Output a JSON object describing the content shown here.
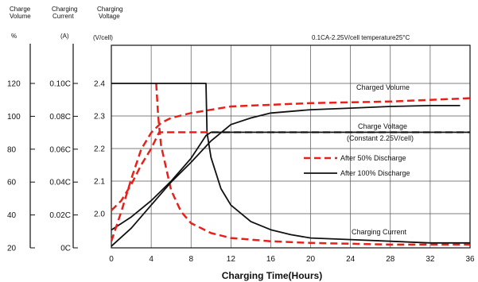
{
  "chart_data": {
    "type": "line",
    "title": "",
    "condition": "0.1CA-2.25V/cell   temperature25°C",
    "xlabel": "Charging Time(Hours)",
    "xlim": [
      0,
      36
    ],
    "x_ticks": [
      "0",
      "4",
      "8",
      "12",
      "16",
      "20",
      "24",
      "28",
      "32",
      "36"
    ],
    "axes": {
      "volume": {
        "header": [
          "Charge",
          "Volume"
        ],
        "unit": "%",
        "ylim": [
          20,
          120
        ],
        "ticks": [
          "120",
          "100",
          "80",
          "60",
          "40",
          "20"
        ]
      },
      "current": {
        "header": [
          "Charging",
          "Current"
        ],
        "unit": "(A)",
        "ylim": [
          0,
          0.1
        ],
        "ticks": [
          "0.10C",
          "0.08C",
          "0.06C",
          "0.04C",
          "0.02C",
          "0C"
        ]
      },
      "voltage": {
        "header": [
          "Charging",
          "Voltage"
        ],
        "unit": "(V/cell)",
        "ylim": [
          1.9,
          2.4
        ],
        "ticks": [
          "2.4",
          "2.3",
          "2.2",
          "2.1",
          "2.0"
        ]
      }
    },
    "legend": {
      "position": "center-right",
      "items": [
        {
          "label": "After 50% Discharge",
          "style": "dashed",
          "color": "#e8201a"
        },
        {
          "label": "After 100% Discharge",
          "style": "solid",
          "color": "#111111"
        }
      ]
    },
    "annotations": {
      "volume": "Charged Volume",
      "voltage": [
        "Charge Voltage",
        "(Constant 2.25V/cell)"
      ],
      "current": "Charging Current"
    },
    "colors": {
      "after_50": "#e8201a",
      "after_100": "#111111"
    },
    "series": [
      {
        "group": "current",
        "axis": "current",
        "discharge": "50%",
        "points": [
          [
            4.5,
            0.1
          ],
          [
            4.7,
            0.08
          ],
          [
            5,
            0.062
          ],
          [
            6,
            0.035
          ],
          [
            7,
            0.022
          ],
          [
            8,
            0.015
          ],
          [
            10,
            0.009
          ],
          [
            12,
            0.006
          ],
          [
            16,
            0.004
          ],
          [
            20,
            0.003
          ],
          [
            28,
            0.002
          ],
          [
            36,
            0.002
          ]
        ]
      },
      {
        "group": "current",
        "axis": "current",
        "discharge": "100%",
        "points": [
          [
            0,
            0.1
          ],
          [
            9.5,
            0.1
          ],
          [
            9.6,
            0.07
          ],
          [
            10,
            0.055
          ],
          [
            11,
            0.036
          ],
          [
            12,
            0.026
          ],
          [
            14,
            0.016
          ],
          [
            16,
            0.011
          ],
          [
            18,
            0.008
          ],
          [
            20,
            0.006
          ],
          [
            24,
            0.005
          ],
          [
            28,
            0.004
          ],
          [
            32,
            0.003
          ],
          [
            36,
            0.003
          ]
        ]
      },
      {
        "group": "voltage",
        "axis": "voltage",
        "discharge": "50%",
        "points": [
          [
            0,
            2.01
          ],
          [
            1,
            2.04
          ],
          [
            2,
            2.09
          ],
          [
            3,
            2.15
          ],
          [
            4,
            2.2
          ],
          [
            4.8,
            2.25
          ],
          [
            6,
            2.25
          ],
          [
            36,
            2.25
          ]
        ]
      },
      {
        "group": "voltage",
        "axis": "voltage",
        "discharge": "100%",
        "points": [
          [
            0,
            1.95
          ],
          [
            2,
            1.99
          ],
          [
            4,
            2.04
          ],
          [
            6,
            2.1
          ],
          [
            8,
            2.17
          ],
          [
            9.5,
            2.24
          ],
          [
            10,
            2.25
          ],
          [
            36,
            2.25
          ]
        ]
      },
      {
        "group": "volume",
        "axis": "volume",
        "discharge": "50%",
        "points": [
          [
            0,
            24
          ],
          [
            1,
            42
          ],
          [
            2,
            62
          ],
          [
            3,
            80
          ],
          [
            4,
            90
          ],
          [
            5,
            96
          ],
          [
            6,
            99
          ],
          [
            8,
            102
          ],
          [
            12,
            106
          ],
          [
            16,
            107
          ],
          [
            20,
            108
          ],
          [
            24,
            108.5
          ],
          [
            28,
            109
          ],
          [
            32,
            110
          ],
          [
            36,
            111
          ]
        ]
      },
      {
        "group": "volume",
        "axis": "volume",
        "discharge": "100%",
        "points": [
          [
            0,
            21
          ],
          [
            2,
            32
          ],
          [
            4,
            46
          ],
          [
            6,
            60
          ],
          [
            8,
            72
          ],
          [
            10,
            85
          ],
          [
            12,
            95
          ],
          [
            14,
            99
          ],
          [
            16,
            102
          ],
          [
            20,
            104
          ],
          [
            24,
            105
          ],
          [
            28,
            106
          ],
          [
            32,
            106.5
          ],
          [
            35,
            106.5
          ]
        ]
      }
    ]
  }
}
